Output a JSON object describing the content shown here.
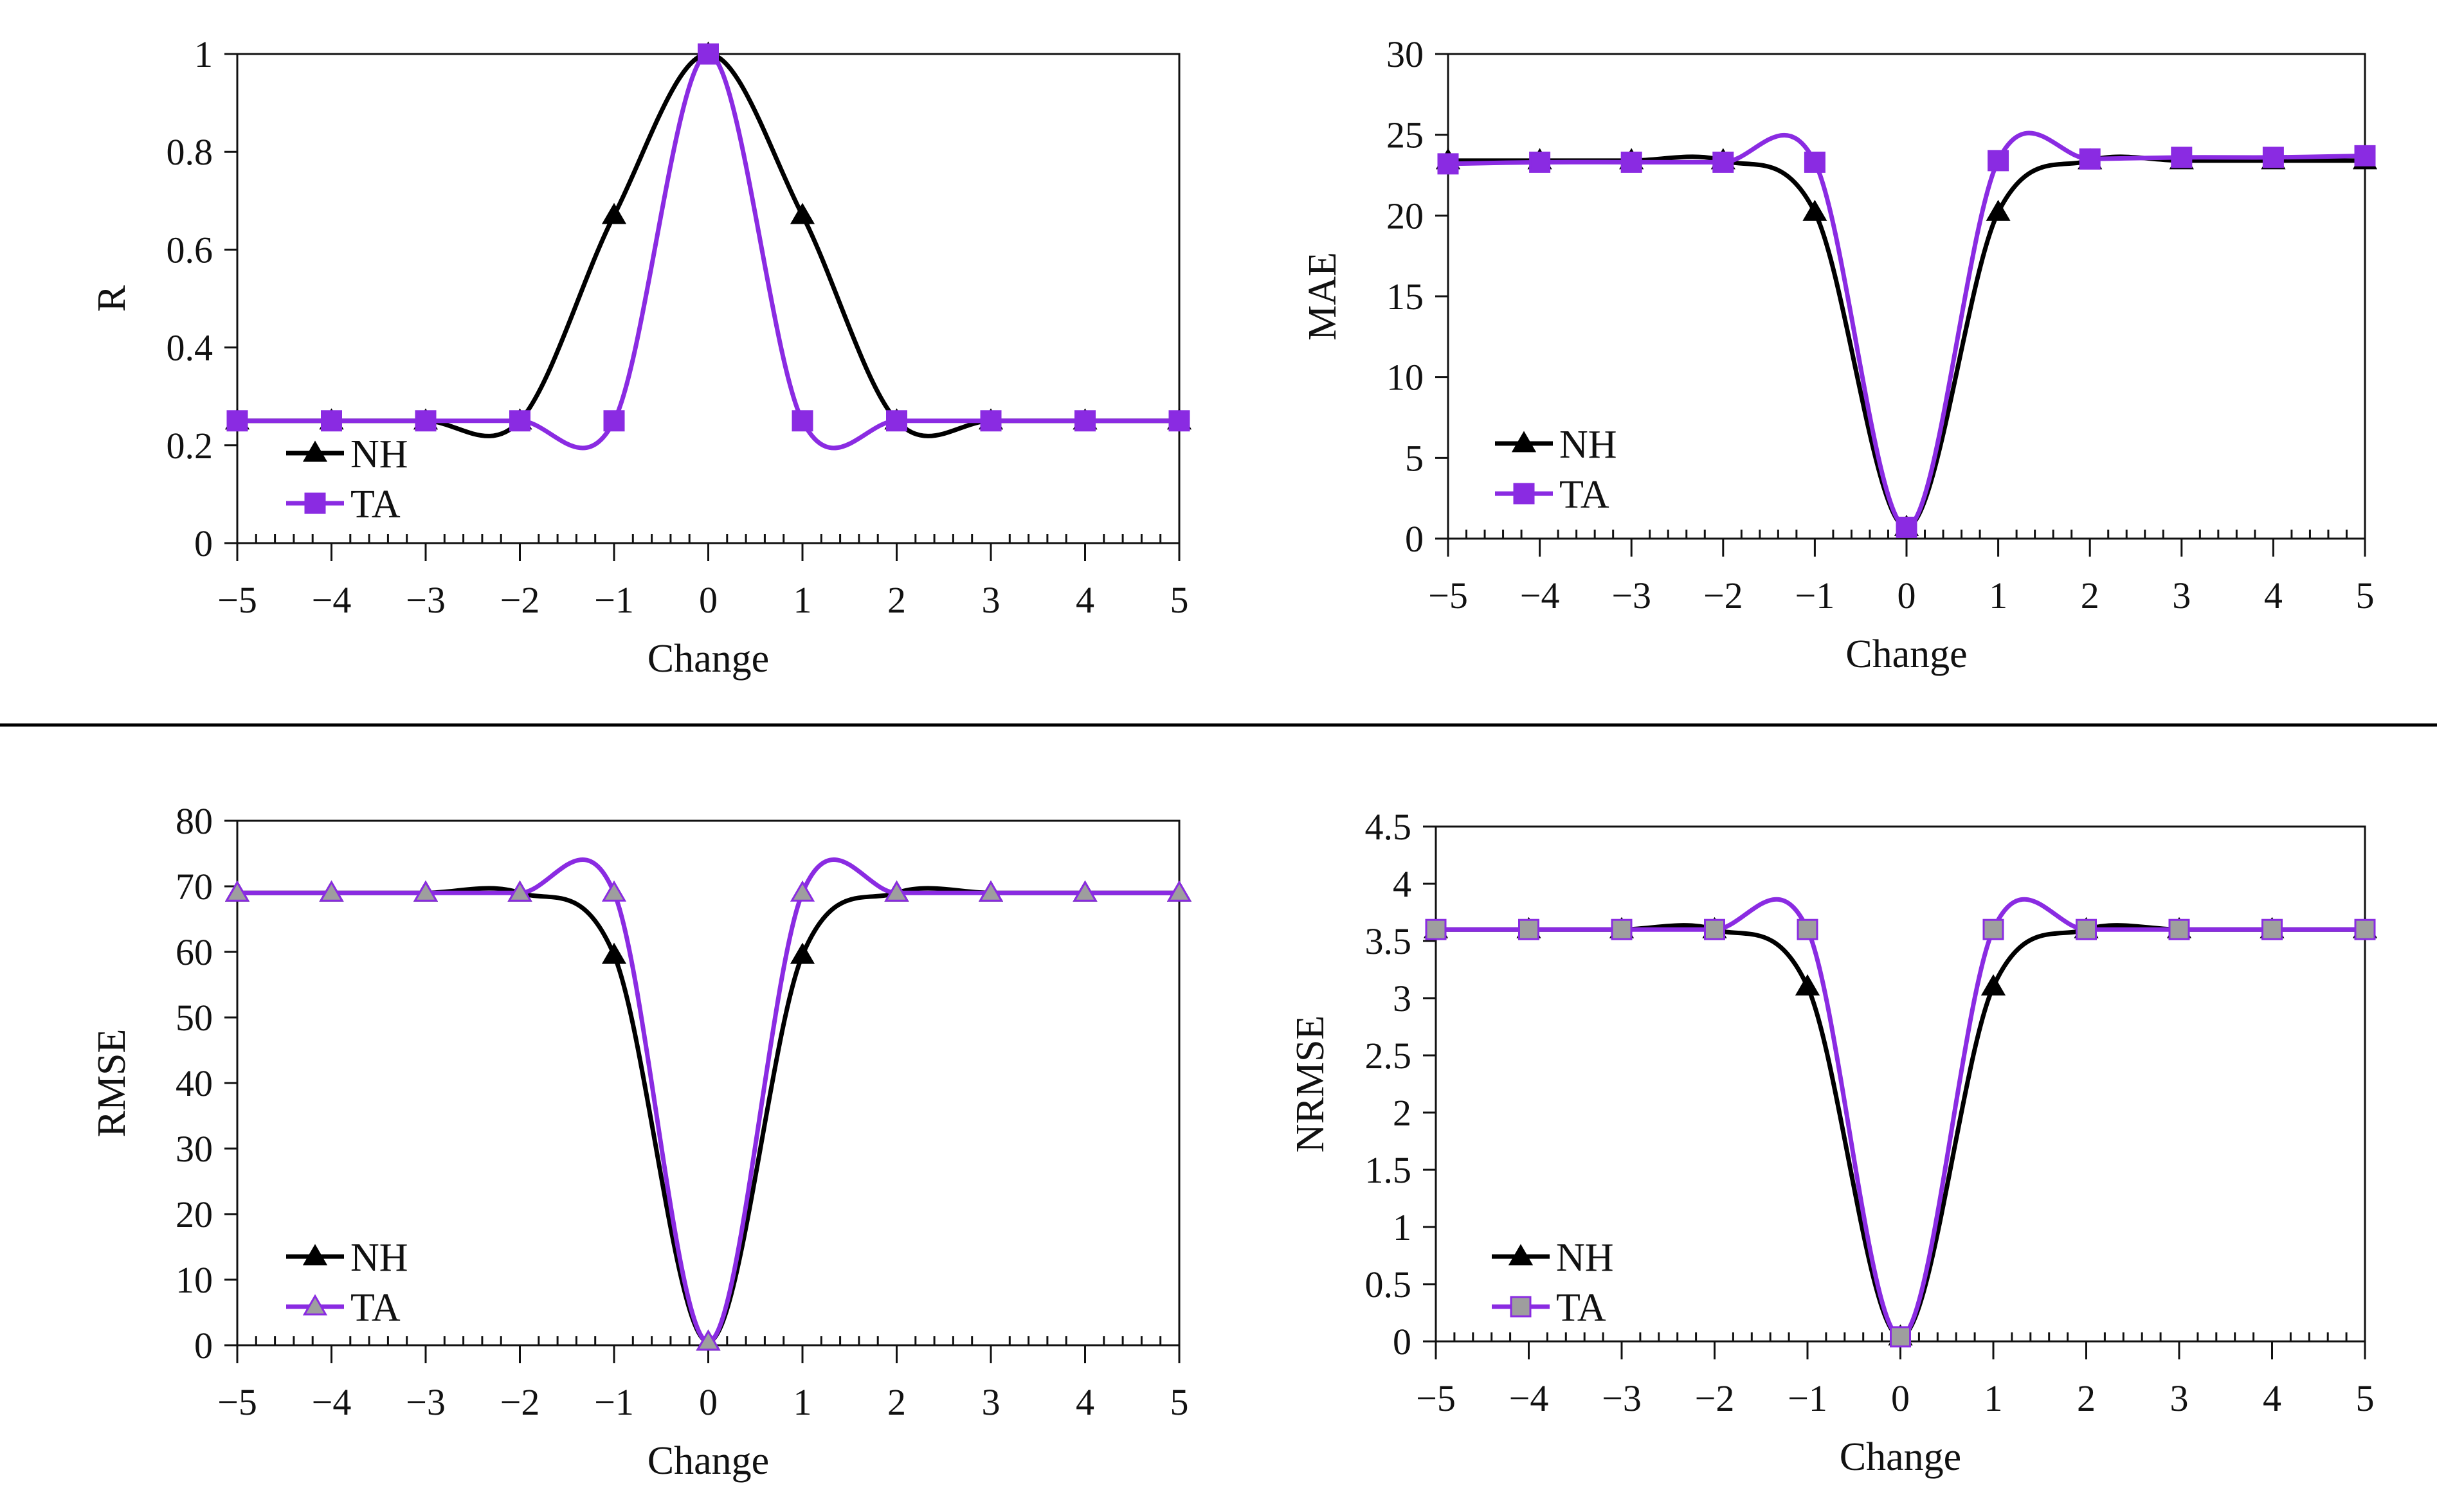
{
  "figure": {
    "divider_visible": true
  },
  "colors": {
    "NH": "#000000",
    "TA": "#8a2be2",
    "TA_marker_rmse": "#9e9e9e",
    "axis": "#111111"
  },
  "chart_data": [
    {
      "id": "r",
      "type": "line",
      "title": "",
      "xlabel": "Change",
      "ylabel": "R",
      "xlim": [
        -5,
        5
      ],
      "ylim": [
        0,
        1
      ],
      "yticks": [
        0,
        0.2,
        0.4,
        0.6,
        0.8,
        1
      ],
      "ytick_labels": [
        "0",
        "0.2",
        "0.4",
        "0.6",
        "0.8",
        "1"
      ],
      "xticks": [
        -5,
        -4,
        -3,
        -2,
        -1,
        0,
        1,
        2,
        3,
        4,
        5
      ],
      "xtick_labels": [
        "−5",
        "−4",
        "−3",
        "−2",
        "−1",
        "0",
        "1",
        "2",
        "3",
        "4",
        "5"
      ],
      "legend_location": "lower-left",
      "x": [
        -5,
        -4,
        -3,
        -2,
        -1,
        0,
        1,
        2,
        3,
        4,
        5
      ],
      "series": [
        {
          "name": "NH",
          "marker": "triangle",
          "values": [
            0.25,
            0.25,
            0.25,
            0.25,
            0.67,
            1.0,
            0.67,
            0.25,
            0.25,
            0.25,
            0.25
          ]
        },
        {
          "name": "TA",
          "marker": "square",
          "values": [
            0.25,
            0.25,
            0.25,
            0.25,
            0.25,
            1.0,
            0.25,
            0.25,
            0.25,
            0.25,
            0.25
          ]
        }
      ]
    },
    {
      "id": "mae",
      "type": "line",
      "title": "",
      "xlabel": "Change",
      "ylabel": "MAE",
      "xlim": [
        -5,
        5
      ],
      "ylim": [
        0,
        30
      ],
      "yticks": [
        0,
        5,
        10,
        15,
        20,
        25,
        30
      ],
      "ytick_labels": [
        "0",
        "5",
        "10",
        "15",
        "20",
        "25",
        "30"
      ],
      "xticks": [
        -5,
        -4,
        -3,
        -2,
        -1,
        0,
        1,
        2,
        3,
        4,
        5
      ],
      "xtick_labels": [
        "−5",
        "−4",
        "−3",
        "−2",
        "−1",
        "0",
        "1",
        "2",
        "3",
        "4",
        "5"
      ],
      "legend_location": "lower-left",
      "x": [
        -5,
        -4,
        -3,
        -2,
        -1,
        0,
        1,
        2,
        3,
        4,
        5
      ],
      "series": [
        {
          "name": "NH",
          "marker": "triangle",
          "values": [
            23.4,
            23.4,
            23.4,
            23.4,
            20.2,
            0.7,
            20.2,
            23.4,
            23.4,
            23.4,
            23.4
          ]
        },
        {
          "name": "TA",
          "marker": "square",
          "values": [
            23.2,
            23.3,
            23.3,
            23.3,
            23.3,
            0.7,
            23.4,
            23.5,
            23.6,
            23.6,
            23.7
          ]
        }
      ]
    },
    {
      "id": "rmse",
      "type": "line",
      "title": "",
      "xlabel": "Change",
      "ylabel": "RMSE",
      "xlim": [
        -5,
        5
      ],
      "ylim": [
        0,
        80
      ],
      "yticks": [
        0,
        10,
        20,
        30,
        40,
        50,
        60,
        70,
        80
      ],
      "ytick_labels": [
        "0",
        "10",
        "20",
        "30",
        "40",
        "50",
        "60",
        "70",
        "80"
      ],
      "xticks": [
        -5,
        -4,
        -3,
        -2,
        -1,
        0,
        1,
        2,
        3,
        4,
        5
      ],
      "xtick_labels": [
        "−5",
        "−4",
        "−3",
        "−2",
        "−1",
        "0",
        "1",
        "2",
        "3",
        "4",
        "5"
      ],
      "legend_location": "lower-left",
      "x": [
        -5,
        -4,
        -3,
        -2,
        -1,
        0,
        1,
        2,
        3,
        4,
        5
      ],
      "series": [
        {
          "name": "NH",
          "marker": "triangle",
          "values": [
            69,
            69,
            69,
            69,
            59.5,
            0.5,
            59.5,
            69,
            69,
            69,
            69
          ]
        },
        {
          "name": "TA",
          "marker": "triangle-gray",
          "values": [
            69,
            69,
            69,
            69,
            69,
            0.5,
            69,
            69,
            69,
            69,
            69
          ]
        }
      ]
    },
    {
      "id": "nrmse",
      "type": "line",
      "title": "",
      "xlabel": "Change",
      "ylabel": "NRMSE",
      "xlim": [
        -5,
        5
      ],
      "ylim": [
        0,
        4.5
      ],
      "yticks": [
        0,
        0.5,
        1,
        1.5,
        2,
        2.5,
        3,
        3.5,
        4,
        4.5
      ],
      "ytick_labels": [
        "0",
        "0.5",
        "1",
        "1.5",
        "2",
        "2.5",
        "3",
        "3.5",
        "4",
        "4.5"
      ],
      "xticks": [
        -5,
        -4,
        -3,
        -2,
        -1,
        0,
        1,
        2,
        3,
        4,
        5
      ],
      "xtick_labels": [
        "−5",
        "−4",
        "−3",
        "−2",
        "−1",
        "0",
        "1",
        "2",
        "3",
        "4",
        "5"
      ],
      "legend_location": "lower-left",
      "x": [
        -5,
        -4,
        -3,
        -2,
        -1,
        0,
        1,
        2,
        3,
        4,
        5
      ],
      "series": [
        {
          "name": "NH",
          "marker": "triangle",
          "values": [
            3.6,
            3.6,
            3.6,
            3.6,
            3.1,
            0.04,
            3.1,
            3.6,
            3.6,
            3.6,
            3.6
          ]
        },
        {
          "name": "TA",
          "marker": "square-gray",
          "values": [
            3.6,
            3.6,
            3.6,
            3.6,
            3.6,
            0.04,
            3.6,
            3.6,
            3.6,
            3.6,
            3.6
          ]
        }
      ]
    }
  ]
}
